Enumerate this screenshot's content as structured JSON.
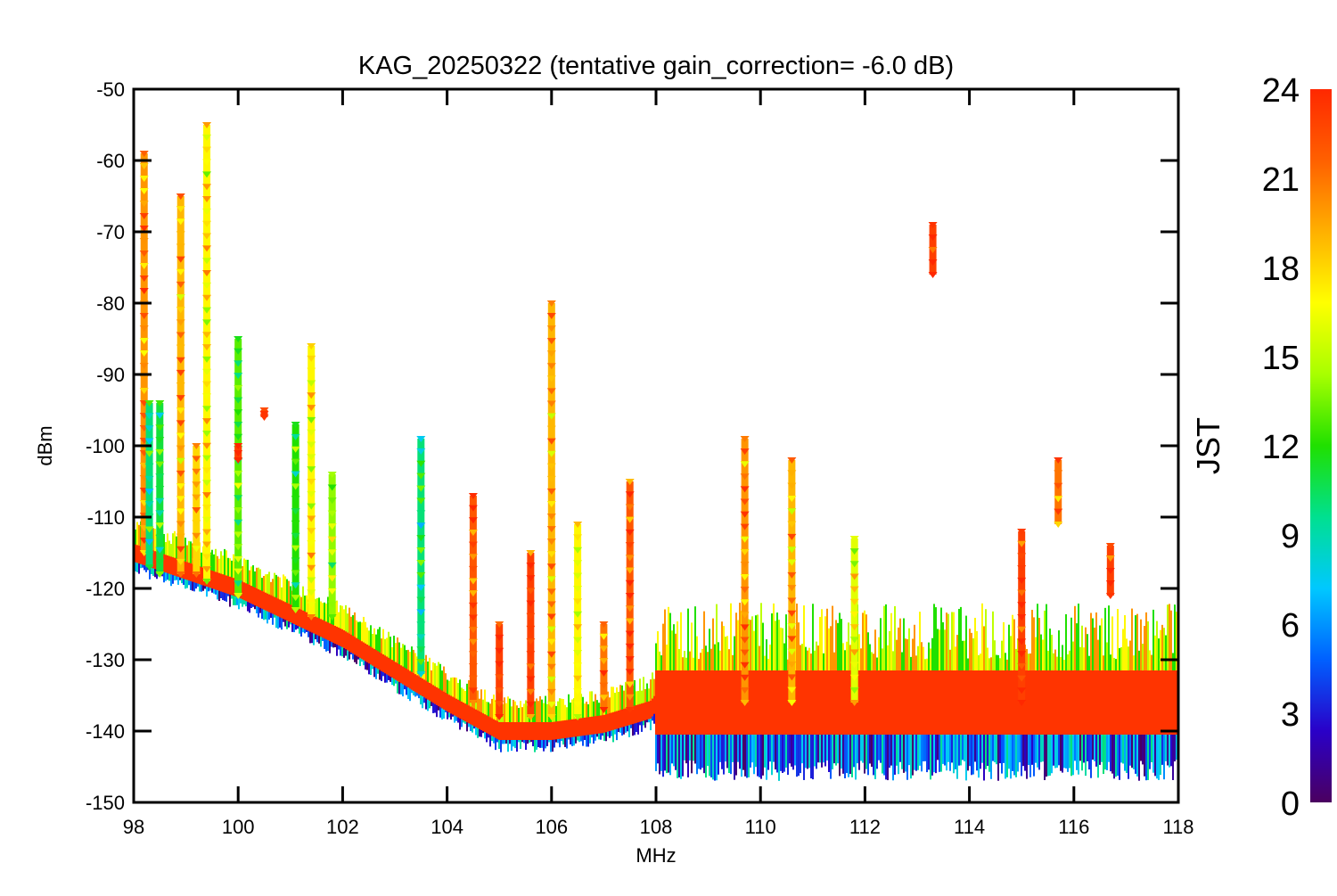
{
  "chart_data": {
    "type": "scatter",
    "title": "KAG_20250322 (tentative gain_correction= -6.0 dB)",
    "xlabel": "MHz",
    "ylabel": "dBm",
    "xlim": [
      98,
      118
    ],
    "ylim": [
      -150,
      -50
    ],
    "x_ticks": [
      98,
      100,
      102,
      104,
      106,
      108,
      110,
      112,
      114,
      116,
      118
    ],
    "y_ticks": [
      -50,
      -60,
      -70,
      -80,
      -90,
      -100,
      -110,
      -120,
      -130,
      -140,
      -150
    ],
    "grid": false,
    "marker": "downward-triangle",
    "colorbar": {
      "label": "JST",
      "range": [
        0,
        24
      ],
      "ticks": [
        0,
        3,
        6,
        9,
        12,
        15,
        18,
        21,
        24
      ],
      "colormap": "rainbow",
      "color_stops": [
        "#4b0060",
        "#2a00c8",
        "#0060ff",
        "#00c8ff",
        "#00e090",
        "#20e000",
        "#a8ff00",
        "#ffff00",
        "#ffb000",
        "#ff6000",
        "#ff2800"
      ]
    },
    "noise_floor": {
      "x": [
        98,
        100,
        102,
        104,
        105,
        106,
        107,
        107.9,
        108,
        110,
        112,
        114,
        116,
        118
      ],
      "y": [
        -115,
        -120,
        -127,
        -136,
        -140,
        -140,
        -139,
        -137,
        -136,
        -136,
        -136,
        -136,
        -136,
        -136
      ]
    },
    "spectral_lines": [
      {
        "x": 98.2,
        "y_top": -59,
        "y_bottom": -115,
        "jst": 20
      },
      {
        "x": 98.3,
        "y_top": -94,
        "y_bottom": -117,
        "jst": 10
      },
      {
        "x": 98.5,
        "y_top": -94,
        "y_bottom": -118,
        "jst": 11
      },
      {
        "x": 98.9,
        "y_top": -65,
        "y_bottom": -118,
        "jst": 19
      },
      {
        "x": 99.2,
        "y_top": -100,
        "y_bottom": -118,
        "jst": 18
      },
      {
        "x": 99.4,
        "y_top": -55,
        "y_bottom": -119,
        "jst": 17
      },
      {
        "x": 100.0,
        "y_top": -85,
        "y_bottom": -121,
        "jst": 13
      },
      {
        "x": 100.0,
        "y_top": -100,
        "y_bottom": -102,
        "jst": 23
      },
      {
        "x": 100.5,
        "y_top": -95,
        "y_bottom": -96,
        "jst": 23
      },
      {
        "x": 101.1,
        "y_top": -97,
        "y_bottom": -123,
        "jst": 12
      },
      {
        "x": 101.4,
        "y_top": -86,
        "y_bottom": -124,
        "jst": 17
      },
      {
        "x": 101.8,
        "y_top": -104,
        "y_bottom": -124,
        "jst": 14
      },
      {
        "x": 103.5,
        "y_top": -99,
        "y_bottom": -132,
        "jst": 10
      },
      {
        "x": 104.5,
        "y_top": -107,
        "y_bottom": -136,
        "jst": 22
      },
      {
        "x": 105.0,
        "y_top": -125,
        "y_bottom": -138,
        "jst": 23
      },
      {
        "x": 105.6,
        "y_top": -115,
        "y_bottom": -138,
        "jst": 23
      },
      {
        "x": 106.0,
        "y_top": -80,
        "y_bottom": -138,
        "jst": 19
      },
      {
        "x": 106.5,
        "y_top": -111,
        "y_bottom": -138,
        "jst": 17
      },
      {
        "x": 107.0,
        "y_top": -125,
        "y_bottom": -137,
        "jst": 21
      },
      {
        "x": 107.5,
        "y_top": -105,
        "y_bottom": -137,
        "jst": 22
      },
      {
        "x": 109.7,
        "y_top": -99,
        "y_bottom": -136,
        "jst": 20
      },
      {
        "x": 110.6,
        "y_top": -102,
        "y_bottom": -136,
        "jst": 19
      },
      {
        "x": 111.8,
        "y_top": -113,
        "y_bottom": -136,
        "jst": 16
      },
      {
        "x": 113.3,
        "y_top": -69,
        "y_bottom": -76,
        "jst": 23
      },
      {
        "x": 115.0,
        "y_top": -112,
        "y_bottom": -136,
        "jst": 23
      },
      {
        "x": 115.7,
        "y_top": -102,
        "y_bottom": -111,
        "jst": 21
      },
      {
        "x": 116.7,
        "y_top": -114,
        "y_bottom": -121,
        "jst": 23
      }
    ]
  }
}
